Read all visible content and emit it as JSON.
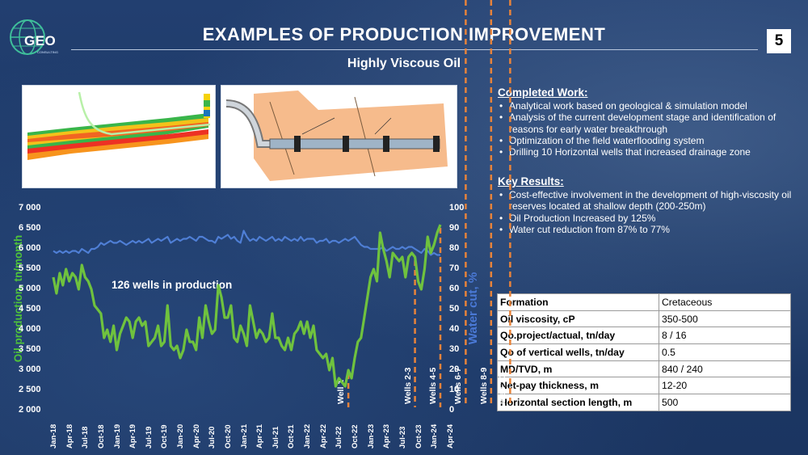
{
  "header": {
    "logo_text": "GEO",
    "logo_sub": "CONSULTING",
    "title": "EXAMPLES OF PRODUCTION IMPROVEMENT",
    "subtitle": "Highly Viscous Oil",
    "page_number": "5"
  },
  "completed_work": {
    "heading": "Completed Work:",
    "items": [
      "Analytical work based on geological & simulation model",
      "Analysis of the current development stage and identification of reasons for early water breakthrough",
      "Optimization of the field waterflooding system",
      "Drilling 10 Horizontal wells that increased drainage zone"
    ]
  },
  "key_results": {
    "heading": "Key Results:",
    "items": [
      "Cost-effective involvement in the development of high-viscosity oil reserves located at shallow depth (200-250m)",
      "Oil Production Increased by 125%",
      "Water cut reduction from 87% to 77%"
    ]
  },
  "parameters": [
    {
      "key": "Formation",
      "value": "Cretaceous"
    },
    {
      "key": "Oil viscosity, cP",
      "value": "350-500"
    },
    {
      "key": "Qo.project/actual, tn/day",
      "value": "8 / 16"
    },
    {
      "key": "Qo of vertical wells, tn/day",
      "value": "0.5"
    },
    {
      "key": "MD/TVD, m",
      "value": "840 / 240"
    },
    {
      "key": "Net-pay thickness, m",
      "value": "12-20"
    },
    {
      "key": "Horizontal section length, m",
      "value": "500"
    }
  ],
  "chart_data": {
    "type": "line",
    "ylabel": "Oil production, tn/month",
    "y2label": "Water cut, %",
    "ylim": [
      2000,
      7000
    ],
    "y2lim": [
      0,
      100
    ],
    "yticks": [
      "7 000",
      "6 500",
      "6 000",
      "5 500",
      "5 000",
      "4 500",
      "4 000",
      "3 500",
      "3 000",
      "2 500",
      "2 000"
    ],
    "y2ticks": [
      "100",
      "90",
      "80",
      "70",
      "60",
      "50",
      "40",
      "30",
      "20",
      "10",
      "0"
    ],
    "x_tick_labels": [
      "Jan-18",
      "Apr-18",
      "Jul-18",
      "Oct-18",
      "Jan-19",
      "Apr-19",
      "Jul-19",
      "Oct-19",
      "Jan-20",
      "Apr-20",
      "Jul-20",
      "Oct-20",
      "Jan-21",
      "Apr-21",
      "Jul-21",
      "Oct-21",
      "Jan-22",
      "Apr-22",
      "Jul-22",
      "Oct-22",
      "Jan-23",
      "Apr-23",
      "Jul-23",
      "Oct-23",
      "Jan-24",
      "Apr-24"
    ],
    "annotation": "126 wells in production",
    "grid": false,
    "colors": {
      "oil": "#6fc23e",
      "water_cut": "#4f7fd6",
      "wells": "#e8833a"
    },
    "series": [
      {
        "name": "Oil production",
        "axis": "left",
        "values": [
          5300,
          4900,
          5400,
          5100,
          5500,
          5200,
          5400,
          5300,
          5000,
          5600,
          5300,
          5200,
          5000,
          4600,
          4500,
          4400,
          3800,
          4000,
          3700,
          4100,
          3500,
          3900,
          4100,
          4300,
          4200,
          3800,
          4200,
          4300,
          4100,
          4200,
          3600,
          3700,
          3800,
          4100,
          3600,
          3700,
          4600,
          3600,
          3500,
          3600,
          3300,
          3500,
          4000,
          3700,
          3700,
          3500,
          4300,
          3800,
          4600,
          4200,
          3900,
          4000,
          5100,
          4800,
          4300,
          4300,
          4600,
          3800,
          3700,
          4100,
          3900,
          3600,
          4600,
          4200,
          3800,
          4000,
          3900,
          3700,
          3800,
          4400,
          3800,
          3800,
          3600,
          3500,
          3800,
          3500,
          3900,
          4000,
          4200,
          3900,
          4200,
          3800,
          4100,
          3500,
          3400,
          3300,
          3400,
          3000,
          3300,
          2600,
          2800,
          2700,
          2600,
          3000,
          2800,
          3300,
          3700,
          3800,
          4300,
          4800,
          5300,
          5500,
          5200,
          6400,
          6000,
          5700,
          5300,
          5900,
          5800,
          5700,
          5800,
          5300,
          5800,
          5900,
          5800,
          5200,
          5000,
          5500,
          6300,
          5900,
          6100,
          6400,
          6600
        ]
      },
      {
        "name": "Water cut",
        "axis": "right",
        "values": [
          79,
          78,
          79,
          78,
          79,
          78,
          79,
          79,
          78,
          80,
          79,
          78,
          80,
          80,
          81,
          83,
          82,
          83,
          84,
          83,
          83,
          84,
          83,
          82,
          83,
          84,
          83,
          84,
          83,
          84,
          85,
          83,
          84,
          85,
          84,
          85,
          86,
          83,
          84,
          85,
          84,
          85,
          85,
          86,
          85,
          84,
          86,
          86,
          85,
          84,
          84,
          83,
          86,
          85,
          86,
          87,
          85,
          86,
          84,
          83,
          89,
          86,
          84,
          85,
          84,
          86,
          85,
          84,
          85,
          86,
          84,
          85,
          84,
          86,
          85,
          84,
          85,
          84,
          86,
          84,
          85,
          85,
          85,
          83,
          84,
          84,
          85,
          83,
          84,
          84,
          83,
          84,
          85,
          84,
          85,
          86,
          84,
          82,
          81,
          81,
          80,
          80,
          80,
          80,
          81,
          79,
          80,
          81,
          80,
          80,
          81,
          80,
          81,
          81,
          80,
          79,
          78,
          80,
          79,
          77,
          78,
          77,
          77
        ]
      }
    ],
    "well_markers": [
      {
        "label": "Well 1",
        "x_index": 93
      },
      {
        "label": "Wells 2-3",
        "x_index": 114
      },
      {
        "label": "Wells 4-5",
        "x_index": 122
      },
      {
        "label": "Wells 6-7",
        "x_index": 130
      },
      {
        "label": "Wells 8-9",
        "x_index": 138
      },
      {
        "label": "Well 10",
        "x_index": 144
      }
    ]
  }
}
